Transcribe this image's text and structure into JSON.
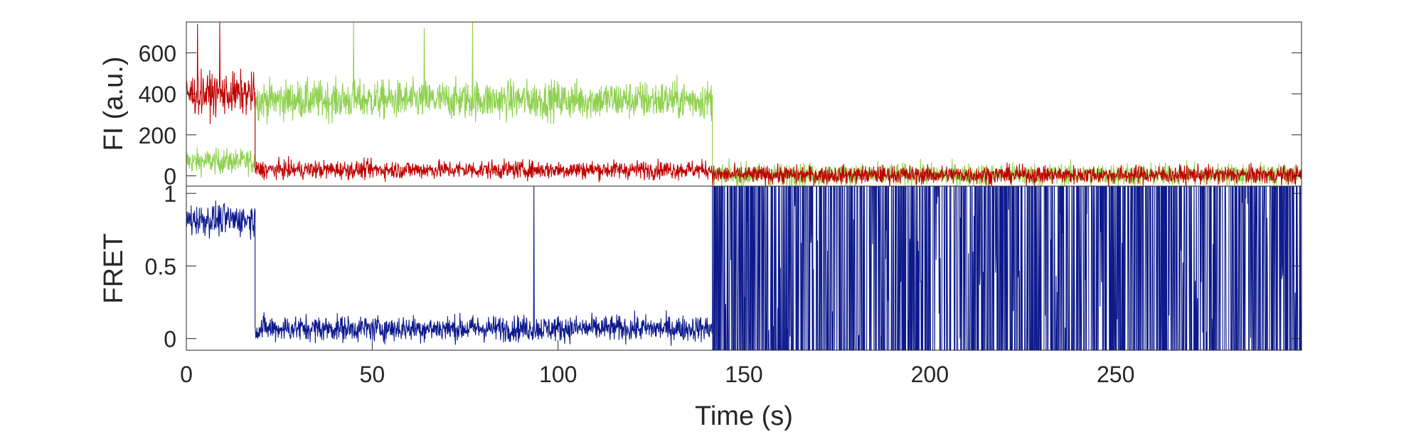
{
  "chart_data": [
    {
      "type": "line",
      "panel": "top",
      "title": "",
      "ylabel": "FI (a.u.)",
      "xlabel": "",
      "xlim": [
        0,
        300
      ],
      "ylim": [
        -50,
        750
      ],
      "yticks": [
        0,
        200,
        400,
        600
      ],
      "ytick_labels": [
        "0",
        "200",
        "400",
        "600"
      ],
      "grid": false,
      "legend": "none",
      "series": [
        {
          "color": "#8fd14f",
          "segments": [
            {
              "t_start": 0,
              "t_end": 18.5,
              "mean": 70,
              "noise": 55
            },
            {
              "t_start": 18.5,
              "t_end": 141.5,
              "mean": 370,
              "noise": 85
            },
            {
              "t_start": 141.5,
              "t_end": 300,
              "mean": 5,
              "noise": 50
            }
          ],
          "spikes": [
            [
              45,
              750
            ],
            [
              64,
              720
            ],
            [
              77,
              750
            ]
          ]
        },
        {
          "color": "#c00000",
          "segments": [
            {
              "t_start": 0,
              "t_end": 18.5,
              "mean": 400,
              "noise": 90
            },
            {
              "t_start": 18.5,
              "t_end": 141.5,
              "mean": 30,
              "noise": 40
            },
            {
              "t_start": 141.5,
              "t_end": 300,
              "mean": 5,
              "noise": 40
            }
          ],
          "spikes": [
            [
              3,
              740
            ],
            [
              9,
              750
            ]
          ]
        }
      ]
    },
    {
      "type": "line",
      "panel": "bottom",
      "title": "",
      "ylabel": "FRET",
      "xlabel": "Time (s)",
      "xlim": [
        0,
        300
      ],
      "ylim": [
        -0.08,
        1.05
      ],
      "yticks": [
        0,
        0.5,
        1
      ],
      "ytick_labels": [
        "0",
        "0.5",
        "1"
      ],
      "xticks": [
        0,
        50,
        100,
        150,
        200,
        250
      ],
      "xtick_labels": [
        "0",
        "50",
        "100",
        "150",
        "200",
        "250"
      ],
      "grid": false,
      "legend": "none",
      "series": [
        {
          "color": "#0d1a8c",
          "segments": [
            {
              "t_start": 0,
              "t_end": 18.5,
              "mean": 0.82,
              "noise": 0.1
            },
            {
              "t_start": 18.5,
              "t_end": 141.5,
              "mean": 0.07,
              "noise": 0.08
            },
            {
              "t_start": 141.5,
              "t_end": 300,
              "mean": 0.5,
              "noise": 0.6
            }
          ],
          "spikes": [
            [
              93.5,
              1.05
            ]
          ]
        }
      ]
    }
  ]
}
